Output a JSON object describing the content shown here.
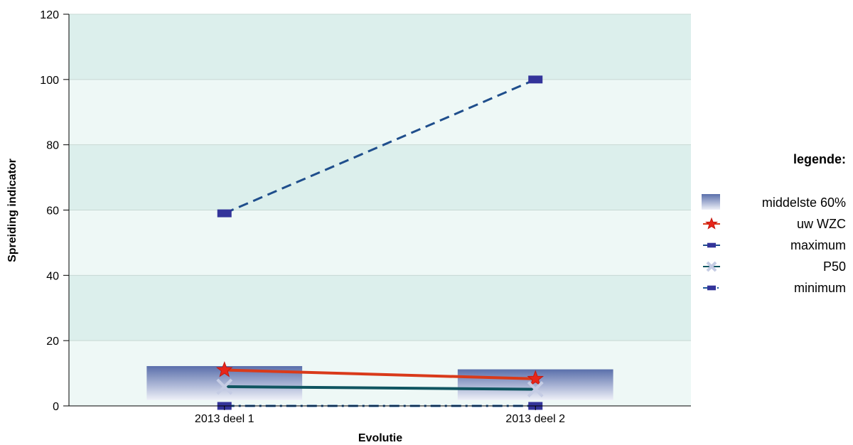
{
  "chart_data": {
    "type": "line",
    "title": "",
    "xlabel": "Evolutie",
    "ylabel": "Spreiding indicator",
    "categories": [
      "2013 deel 1",
      "2013 deel 2"
    ],
    "ylim": [
      0,
      120
    ],
    "yticks": [
      0,
      20,
      40,
      60,
      80,
      100,
      120
    ],
    "grid": true,
    "legend_title": "legende:",
    "legend_position": "right",
    "middle_60": {
      "name": "middelste 60%",
      "ranges": [
        [
          1.8,
          12.2
        ],
        [
          1.8,
          11.2
        ]
      ],
      "color": "#5a6fab"
    },
    "series": [
      {
        "name": "uw WZC",
        "values": [
          11.0,
          8.3
        ],
        "color": "#d93a1a",
        "marker": "star",
        "line_style": "solid"
      },
      {
        "name": "maximum",
        "values": [
          59.0,
          100.0
        ],
        "color": "#1f4e8c",
        "marker": "square",
        "line_style": "dashed"
      },
      {
        "name": "P50",
        "values": [
          5.9,
          5.1
        ],
        "color": "#0f5560",
        "marker": "x",
        "line_style": "solid"
      },
      {
        "name": "minimum",
        "values": [
          0.0,
          0.0
        ],
        "color": "#1f5a9a",
        "marker": "square",
        "line_style": "dashdot"
      }
    ],
    "colors": {
      "band_dark": "#dcefec",
      "band_light": "#eef8f6",
      "marker_square": "#33349a",
      "marker_x": "#c5cce4"
    }
  }
}
